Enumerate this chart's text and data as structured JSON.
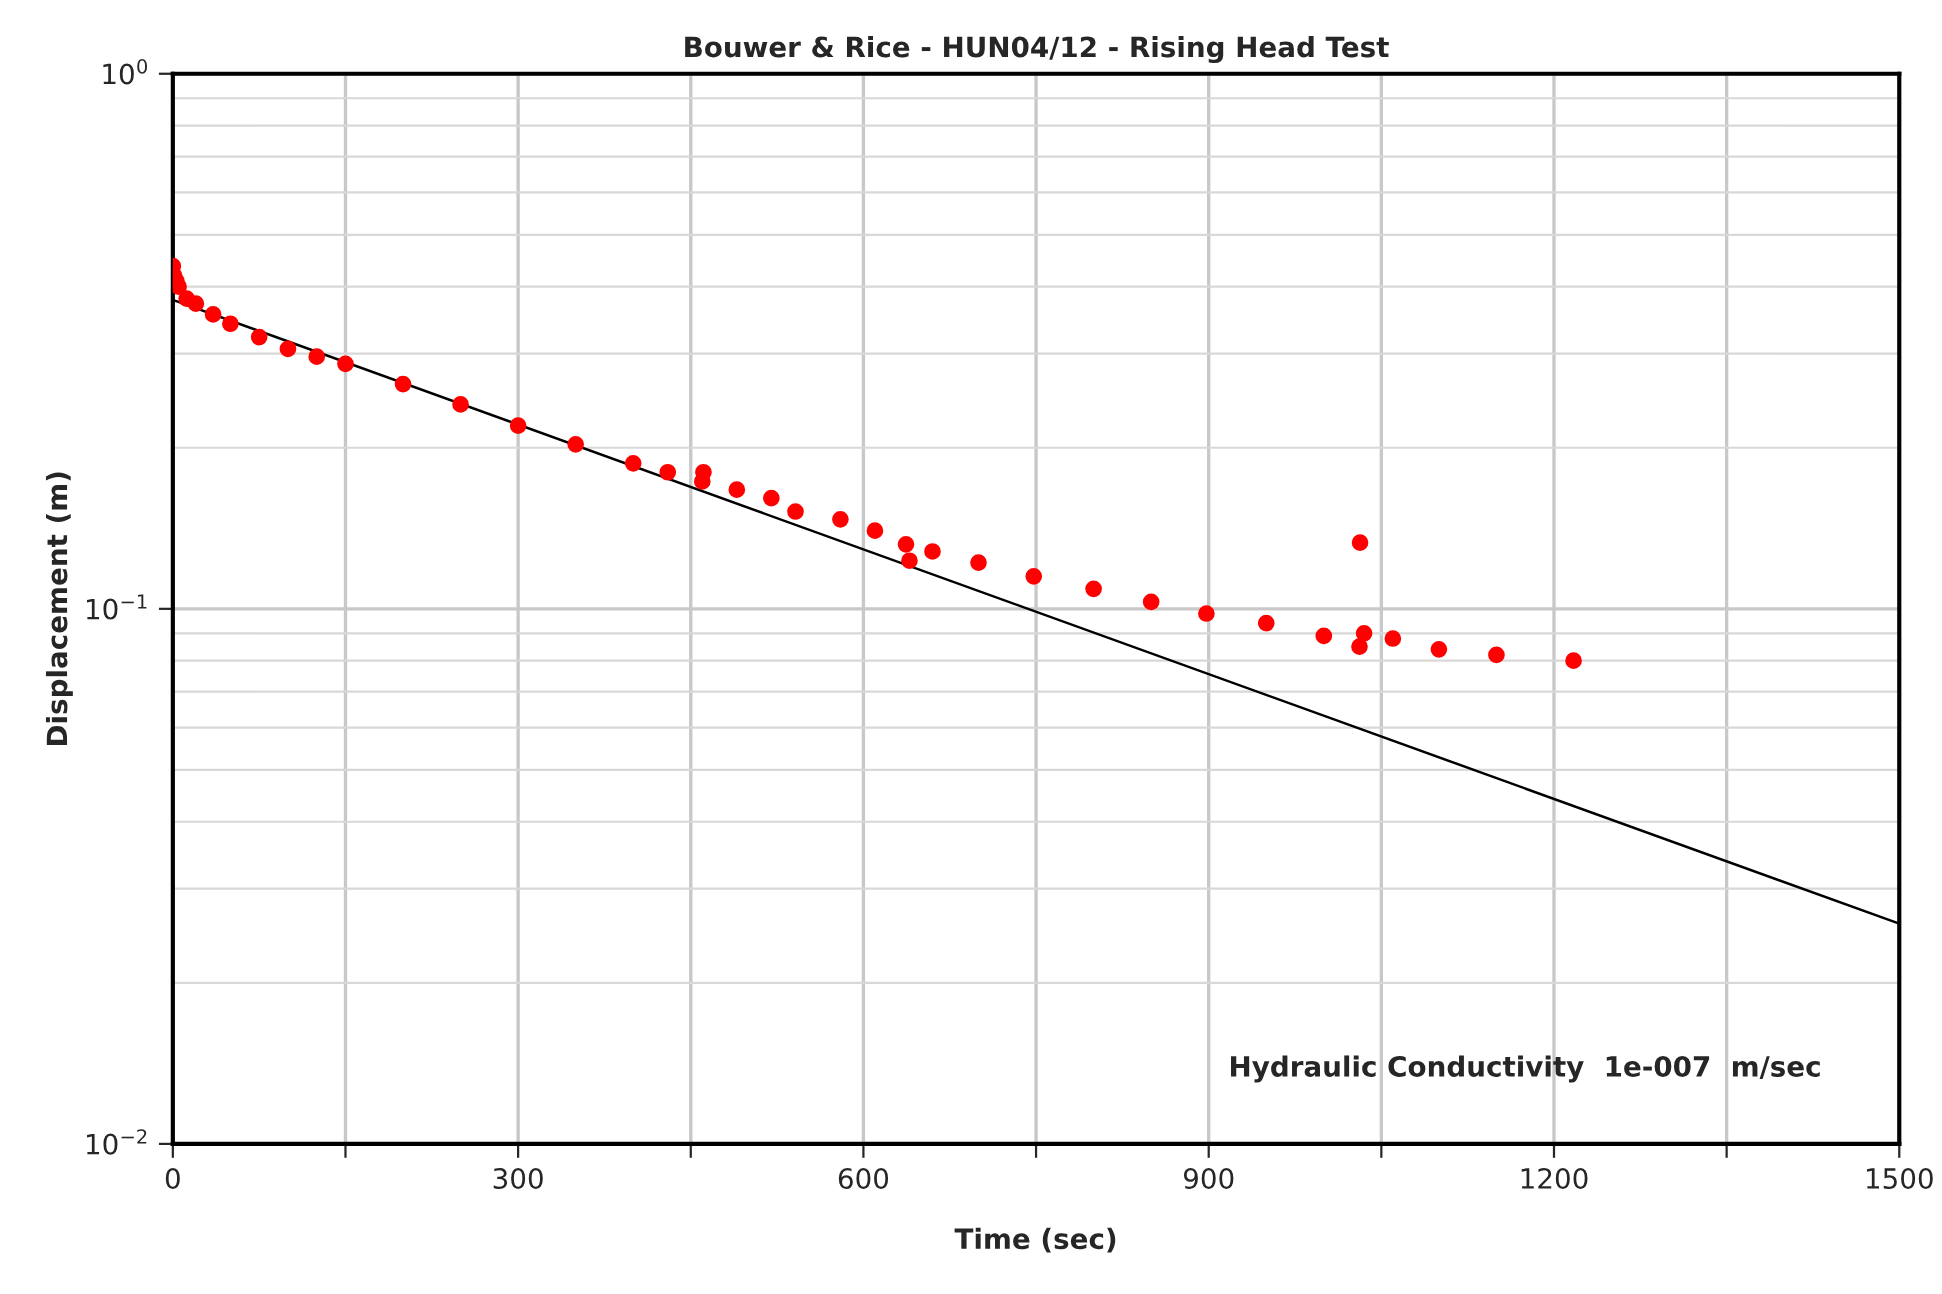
{
  "chart_data": {
    "type": "scatter",
    "title": "Bouwer & Rice - HUN04/12 - Rising Head Test",
    "xlabel": "Time (sec)",
    "ylabel": "Displacement (m)",
    "log": "y",
    "grid": true,
    "marker": "circle",
    "xlim": [
      0,
      1500
    ],
    "xticks": [
      0,
      {
        "value": 150,
        "label": null
      },
      300,
      {
        "value": 450,
        "label": null
      },
      600,
      {
        "value": 750,
        "label": null
      },
      900,
      {
        "value": 1050,
        "label": null
      },
      1200,
      {
        "value": 1350,
        "label": null
      },
      1500
    ],
    "ylim": [
      0.01,
      1
    ],
    "yticks": [
      {
        "value": 0.01,
        "label": "10$^{−2}$"
      },
      {
        "value": 0.1,
        "label": "10$^{−1}$"
      },
      {
        "value": 1,
        "label": "10$^{0}$"
      }
    ],
    "series": [
      {
        "color": "#ff0000",
        "x": [
          0,
          1,
          3,
          5,
          12,
          20,
          35,
          50,
          75,
          100,
          125,
          150,
          200,
          250,
          300,
          350,
          400,
          430,
          460,
          461,
          490,
          520,
          541,
          580,
          610,
          637,
          640,
          660,
          700,
          748,
          800,
          850,
          898,
          950,
          1000,
          1031,
          1031.5,
          1035,
          1060,
          1100,
          1150,
          1217
        ],
        "values": [
          0.437,
          0.42,
          0.41,
          0.4,
          0.38,
          0.372,
          0.355,
          0.341,
          0.322,
          0.306,
          0.296,
          0.287,
          0.263,
          0.241,
          0.22,
          0.203,
          0.187,
          0.18,
          0.173,
          0.18,
          0.167,
          0.161,
          0.152,
          0.147,
          0.14,
          0.132,
          0.123,
          0.128,
          0.122,
          0.115,
          0.109,
          0.103,
          0.098,
          0.094,
          0.089,
          0.085,
          0.133,
          0.09,
          0.088,
          0.084,
          0.082,
          0.08
        ]
      },
      {
        "type": "line",
        "color": "#000000",
        "marker": "none",
        "x": [
          0,
          1500
        ],
        "values": [
          0.378,
          0.0258
        ]
      }
    ],
    "annotations": [
      "Hydraulic Conductivity  1e-007  m/sec"
    ]
  }
}
